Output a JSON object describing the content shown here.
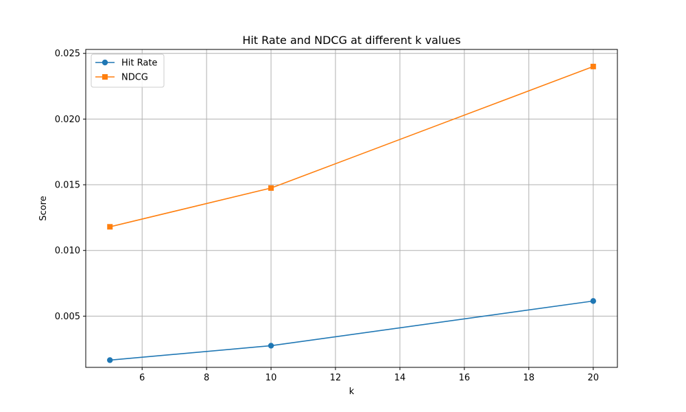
{
  "chart_data": {
    "type": "line",
    "title": "Hit Rate and NDCG at different k values",
    "xlabel": "k",
    "ylabel": "Score",
    "x": [
      5,
      10,
      20
    ],
    "xlim": [
      4.25,
      20.75
    ],
    "ylim": [
      0.0011,
      0.0253
    ],
    "xticks": [
      6,
      8,
      10,
      12,
      14,
      16,
      18,
      20
    ],
    "yticks": [
      0.005,
      0.01,
      0.015,
      0.02,
      0.025
    ],
    "ytick_labels": [
      "0.005",
      "0.010",
      "0.015",
      "0.020",
      "0.025"
    ],
    "grid": true,
    "legend_position": "top-left",
    "series": [
      {
        "name": "Hit Rate",
        "values": [
          0.00165,
          0.00275,
          0.00615
        ],
        "color": "#1f77b4",
        "marker": "circle"
      },
      {
        "name": "NDCG",
        "values": [
          0.0118,
          0.01475,
          0.024
        ],
        "color": "#ff7f0e",
        "marker": "square"
      }
    ]
  }
}
